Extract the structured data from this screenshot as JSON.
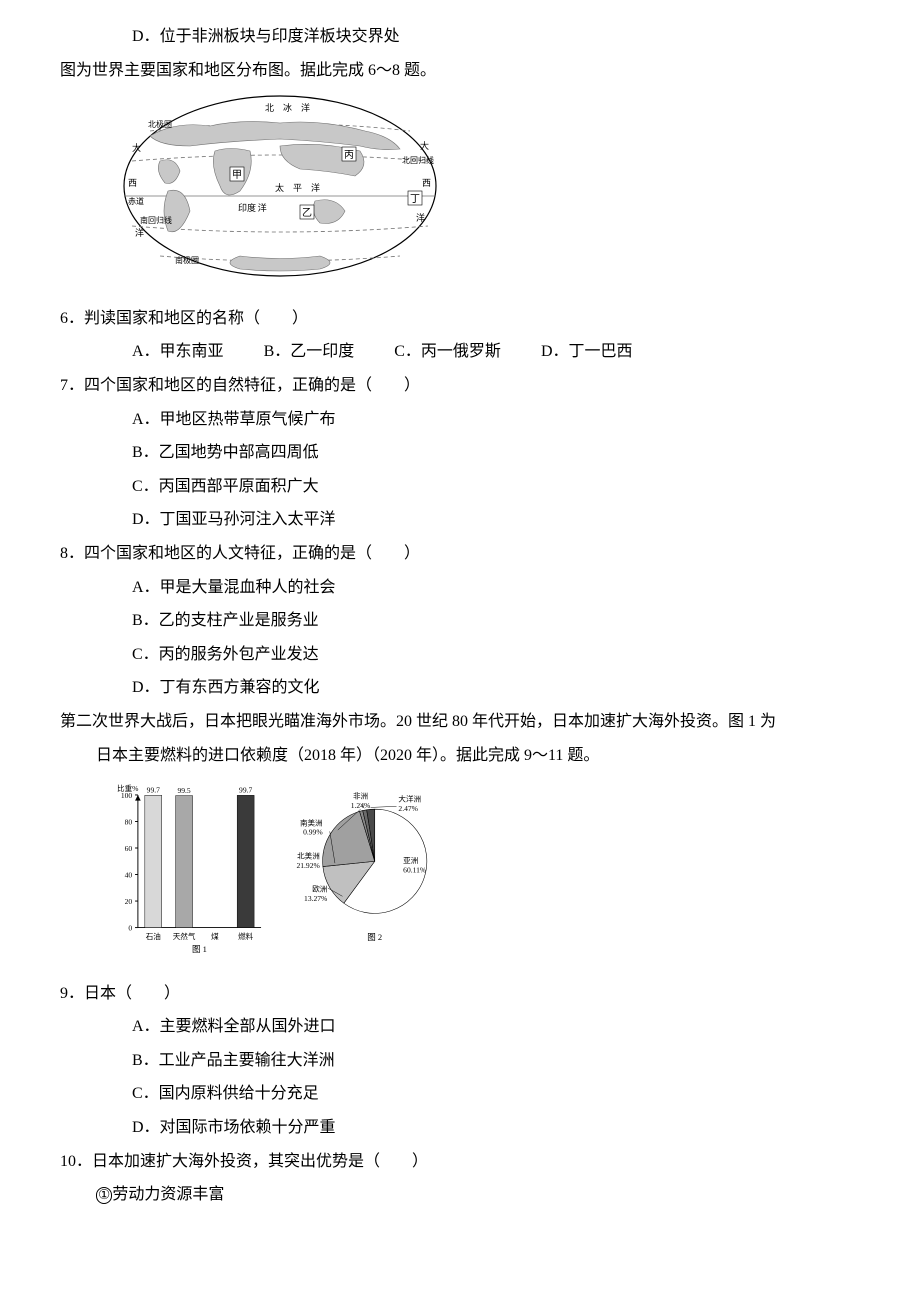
{
  "colors": {
    "text": "#000000",
    "bg": "#ffffff",
    "figure_line": "#707070",
    "figure_fill_light": "#d8d8d8",
    "figure_fill_mid": "#a8a8a8",
    "figure_fill_dark": "#5c5c5c",
    "figure_fill_vdark": "#3a3a3a"
  },
  "q5d": "位于非洲板块与印度洋板块交界处",
  "intro68": "图为世界主要国家和地区分布图。据此完成 6～8 题。",
  "map": {
    "labels": {
      "arctic": "北　冰　洋",
      "arctic_circle_l": "北极圈",
      "tropic_n": "北回归线",
      "pacific": "太　平　洋",
      "atlantic_l": "大",
      "atlantic_l2": "西",
      "atlantic_l3": "洋",
      "atlantic_r": "大",
      "atlantic_r2": "西",
      "atlantic_r3": "洋",
      "equator": "赤道",
      "indian": "印度 洋",
      "tropic_s": "南回归线",
      "antarctic_circle": "南极圈",
      "jia": "甲",
      "yi": "乙",
      "bing": "丙",
      "ding": "丁"
    },
    "stroke": "#707070",
    "fill": "#c8c8c8",
    "font_size": 8
  },
  "q6": {
    "num": "6．",
    "stem": "判读国家和地区的名称（　　）",
    "A": "A．甲东南亚",
    "B": "B．乙一印度",
    "C": "C．丙一俄罗斯",
    "D": "D．丁一巴西"
  },
  "q7": {
    "num": "7．",
    "stem": "四个国家和地区的自然特征，正确的是（　　）",
    "A": "A．甲地区热带草原气候广布",
    "B": "B．乙国地势中部高四周低",
    "C": "C．丙国西部平原面积广大",
    "D": "D．丁国亚马孙河注入太平洋"
  },
  "q8": {
    "num": "8．",
    "stem": "四个国家和地区的人文特征，正确的是（　　）",
    "A": "A．甲是大量混血种人的社会",
    "B": "B．乙的支柱产业是服务业",
    "C": "C．丙的服务外包产业发达",
    "D": "D．丁有东西方兼容的文化"
  },
  "intro911_a": "第二次世界大战后，日本把眼光瞄准海外市场。20 世纪 80 年代开始，日本加速扩大海外投资。图 1 为",
  "intro911_b": "日本主要燃料的进口依赖度（2018 年）（2020 年）。据此完成 9～11 题。",
  "barChart": {
    "type": "bar",
    "title": "图 1",
    "ylabel": "比重%",
    "ylim": [
      0,
      100
    ],
    "ytick_step": 20,
    "categories": [
      "石油",
      "天然气",
      "煤",
      "燃料"
    ],
    "values": [
      99.7,
      99.5,
      null,
      99.7
    ],
    "value_labels": [
      "99.7",
      "99.5",
      "",
      "99.7"
    ],
    "bar_colors": [
      "#d8d8d8",
      "#a8a8a8",
      "#5c5c5c",
      "#3a3a3a"
    ],
    "bar_width": 0.55,
    "axis_color": "#000000",
    "label_fontsize": 8
  },
  "pieChart": {
    "type": "pie",
    "title": "图 2",
    "slices": [
      {
        "label": "亚洲",
        "pct": 60.11,
        "text": "60.11%",
        "color": "#ffffff"
      },
      {
        "label": "欧洲",
        "pct": 13.27,
        "text": "13.27%",
        "color": "#c0c0c0"
      },
      {
        "label": "北美洲",
        "pct": 21.92,
        "text": "21.92%",
        "color": "#a0a0a0"
      },
      {
        "label": "南美洲",
        "pct": 0.99,
        "text": "0.99%",
        "color": "#888888"
      },
      {
        "label": "非洲",
        "pct": 1.24,
        "text": "1.24%",
        "color": "#6a6a6a"
      },
      {
        "label": "大洋洲",
        "pct": 2.47,
        "text": "2.47%",
        "color": "#4a4a4a"
      }
    ],
    "stroke": "#000000",
    "label_fontsize": 8
  },
  "q9": {
    "num": "9．",
    "stem": "日本（　　）",
    "A": "A．主要燃料全部从国外进口",
    "B": "B．工业产品主要输往大洋洲",
    "C": "C．国内原料供给十分充足",
    "D": "D．对国际市场依赖十分严重"
  },
  "q10": {
    "num": "10．",
    "stem": "日本加速扩大海外投资，其突出优势是（　　）",
    "opt1_num": "①",
    "opt1": "劳动力资源丰富"
  }
}
